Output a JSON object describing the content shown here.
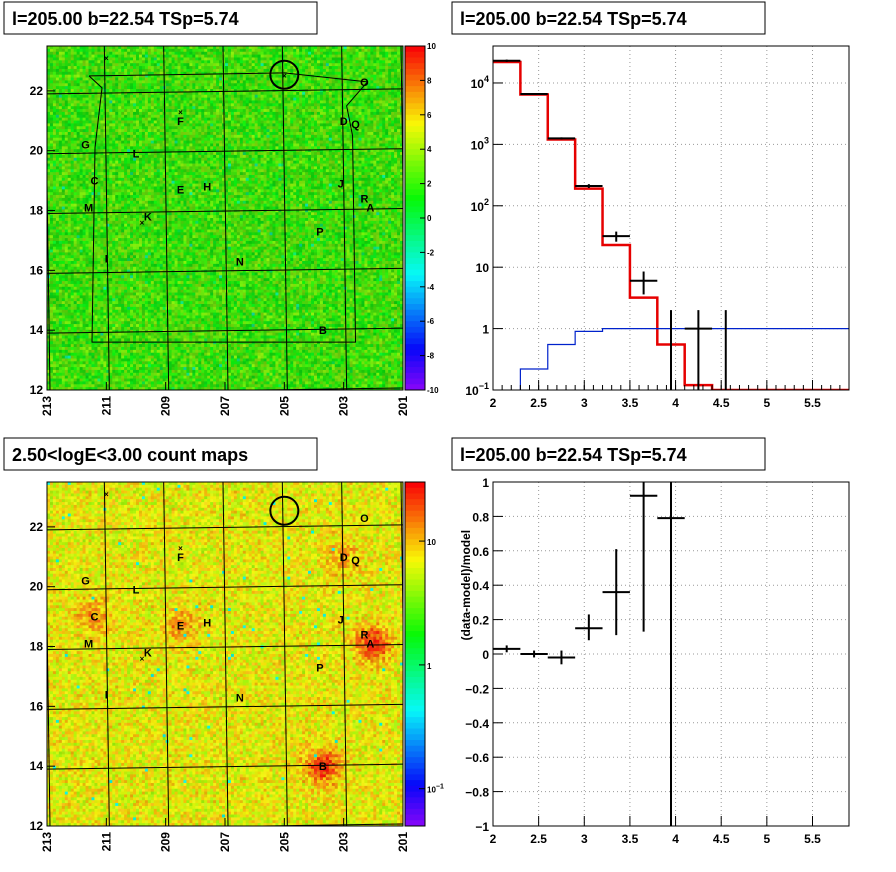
{
  "titles": {
    "tl": "l=205.00 b=22.54 TSp=5.74",
    "tr": "l=205.00 b=22.54 TSp=5.74",
    "bl": "2.50<logE<3.00 count maps",
    "br": "l=205.00 b=22.54 TSp=5.74"
  },
  "colors": {
    "model": "#e60000",
    "background": "#0022cc",
    "data": "#000000"
  },
  "chart_data": [
    {
      "id": "tl",
      "type": "heatmap",
      "x_ticks": [
        "213",
        "211",
        "209",
        "207",
        "205",
        "203",
        "201"
      ],
      "y_ticks": [
        "12",
        "14",
        "16",
        "18",
        "20",
        "22"
      ],
      "xlim": [
        213,
        201
      ],
      "ylim": [
        12,
        23.5
      ],
      "colorbar": {
        "range": [
          -10,
          10
        ],
        "ticks": [
          "-10",
          "-8",
          "-6",
          "-4",
          "-2",
          "0",
          "2",
          "4",
          "6",
          "8",
          "10"
        ]
      },
      "sources": [
        {
          "name": "O",
          "l": 202.3,
          "b": 22.3
        },
        {
          "name": "D",
          "l": 203.0,
          "b": 21.0
        },
        {
          "name": "Q",
          "l": 202.6,
          "b": 20.9
        },
        {
          "name": "G",
          "l": 211.7,
          "b": 20.2
        },
        {
          "name": "L",
          "l": 210.0,
          "b": 19.9
        },
        {
          "name": "F",
          "l": 208.5,
          "b": 21.0
        },
        {
          "name": "C",
          "l": 211.4,
          "b": 19.0
        },
        {
          "name": "J",
          "l": 203.1,
          "b": 18.9
        },
        {
          "name": "E",
          "l": 208.5,
          "b": 18.7
        },
        {
          "name": "H",
          "l": 207.6,
          "b": 18.8
        },
        {
          "name": "R",
          "l": 202.3,
          "b": 18.4
        },
        {
          "name": "A",
          "l": 202.1,
          "b": 18.1
        },
        {
          "name": "M",
          "l": 211.6,
          "b": 18.1
        },
        {
          "name": "K",
          "l": 209.6,
          "b": 17.8
        },
        {
          "name": "P",
          "l": 203.8,
          "b": 17.3
        },
        {
          "name": "I",
          "l": 211.0,
          "b": 16.4
        },
        {
          "name": "N",
          "l": 206.5,
          "b": 16.3
        },
        {
          "name": "B",
          "l": 203.7,
          "b": 14.0
        }
      ]
    },
    {
      "id": "tr",
      "type": "line",
      "xlim": [
        2,
        5.9
      ],
      "ylim": [
        0.1,
        40000
      ],
      "yscale": "log",
      "x_ticks": [
        "2",
        "2.5",
        "3",
        "3.5",
        "4",
        "4.5",
        "5",
        "5.5"
      ],
      "y_ticks": [
        {
          "base": "10",
          "exp": "4"
        },
        {
          "base": "10",
          "exp": "3"
        },
        {
          "base": "10",
          "exp": "2"
        },
        {
          "base": "10",
          "exp": ""
        },
        {
          "base": "1",
          "exp": ""
        },
        {
          "base": "10",
          "exp": "−1"
        }
      ],
      "series": [
        {
          "role": "model",
          "edges": [
            2.0,
            2.3,
            2.6,
            2.9,
            3.2,
            3.5,
            3.8,
            4.1,
            4.4,
            4.7,
            5.0,
            5.3,
            5.6,
            5.9
          ],
          "values": [
            22000,
            6500,
            1200,
            190,
            23,
            3.2,
            0.55,
            0.12,
            0.1,
            0.1,
            0.1,
            0.1,
            0.1
          ]
        },
        {
          "role": "background",
          "edges": [
            2.0,
            2.3,
            2.6,
            2.9,
            3.2,
            3.5,
            3.8,
            4.1,
            4.4,
            4.7,
            5.0,
            5.3,
            5.6,
            5.9
          ],
          "values": [
            0.06,
            0.22,
            0.55,
            0.9,
            1.0,
            1.0,
            1.0,
            1.0,
            1.0,
            1.0,
            1.0,
            1.0,
            1.0
          ]
        }
      ],
      "points": [
        {
          "x": 2.15,
          "y": 23000,
          "xerr": 0.15,
          "ylo": 22000,
          "yhi": 24000
        },
        {
          "x": 2.45,
          "y": 6600,
          "xerr": 0.15,
          "ylo": 6400,
          "yhi": 6800
        },
        {
          "x": 2.75,
          "y": 1250,
          "xerr": 0.15,
          "ylo": 1200,
          "yhi": 1300
        },
        {
          "x": 3.05,
          "y": 210,
          "xerr": 0.15,
          "ylo": 195,
          "yhi": 225
        },
        {
          "x": 3.35,
          "y": 32,
          "xerr": 0.15,
          "ylo": 26,
          "yhi": 38
        },
        {
          "x": 3.65,
          "y": 6,
          "xerr": 0.15,
          "ylo": 3.6,
          "yhi": 8.5
        },
        {
          "x": 3.95,
          "y": 1,
          "xerr": 0,
          "ylo": 0.1,
          "yhi": 2
        },
        {
          "x": 4.25,
          "y": 1,
          "xerr": 0.15,
          "ylo": 0.1,
          "yhi": 2
        },
        {
          "x": 4.55,
          "y": 1,
          "xerr": 0,
          "ylo": 0.1,
          "yhi": 2
        }
      ]
    },
    {
      "id": "bl",
      "type": "heatmap",
      "x_ticks": [
        "213",
        "211",
        "209",
        "207",
        "205",
        "203",
        "201"
      ],
      "y_ticks": [
        "12",
        "14",
        "16",
        "18",
        "20",
        "22"
      ],
      "xlim": [
        213,
        201
      ],
      "ylim": [
        12,
        23.5
      ],
      "colorbar": {
        "scale": "log",
        "range": [
          0.05,
          30
        ],
        "ticks": [
          {
            "base": "10",
            "exp": ""
          },
          {
            "base": "1",
            "exp": ""
          },
          {
            "base": "10",
            "exp": "−1"
          }
        ]
      },
      "hotspots": [
        {
          "l": 202.0,
          "b": 18.1,
          "strength": 1.0
        },
        {
          "l": 203.7,
          "b": 14.0,
          "strength": 1.0
        },
        {
          "l": 211.4,
          "b": 19.0,
          "strength": 0.5
        },
        {
          "l": 208.5,
          "b": 18.7,
          "strength": 0.5
        },
        {
          "l": 203.0,
          "b": 21.0,
          "strength": 0.4
        }
      ]
    },
    {
      "id": "br",
      "type": "scatter",
      "xlim": [
        2,
        5.9
      ],
      "ylim": [
        -1,
        1
      ],
      "ylabel": "(data-model)/model",
      "x_ticks": [
        "2",
        "2.5",
        "3",
        "3.5",
        "4",
        "4.5",
        "5",
        "5.5"
      ],
      "y_ticks": [
        "−1",
        "−0.8",
        "−0.6",
        "−0.4",
        "−0.2",
        "0",
        "0.2",
        "0.4",
        "0.6",
        "0.8",
        "1"
      ],
      "points": [
        {
          "x": 2.15,
          "y": 0.03,
          "xerr": 0.15,
          "ylo": 0.01,
          "yhi": 0.05
        },
        {
          "x": 2.45,
          "y": 0.0,
          "xerr": 0.15,
          "ylo": -0.02,
          "yhi": 0.02
        },
        {
          "x": 2.75,
          "y": -0.02,
          "xerr": 0.15,
          "ylo": -0.06,
          "yhi": 0.02
        },
        {
          "x": 3.05,
          "y": 0.15,
          "xerr": 0.15,
          "ylo": 0.08,
          "yhi": 0.23
        },
        {
          "x": 3.35,
          "y": 0.36,
          "xerr": 0.15,
          "ylo": 0.11,
          "yhi": 0.61
        },
        {
          "x": 3.65,
          "y": 0.92,
          "xerr": 0.15,
          "ylo": 0.13,
          "yhi": 1.0
        },
        {
          "x": 3.95,
          "y": 0.79,
          "xerr": 0.15,
          "ylo": -1.0,
          "yhi": 1.0
        }
      ]
    }
  ]
}
